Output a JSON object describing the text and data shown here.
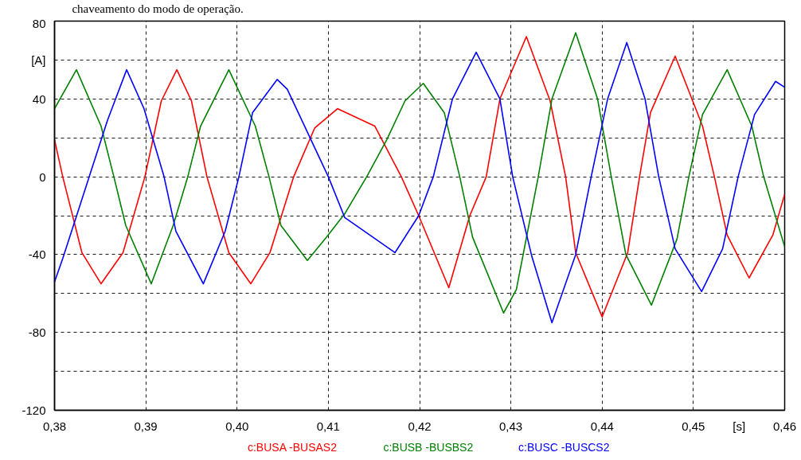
{
  "chart_data": {
    "type": "line",
    "annotations": [
      "chaveamento do modo de operação."
    ],
    "xlabel": "[s]",
    "xlim": [
      0.38,
      0.46
    ],
    "ylim": [
      -120,
      80
    ],
    "xticks": [
      {
        "value": 0.38,
        "label": "0,38"
      },
      {
        "value": 0.39,
        "label": "0,39"
      },
      {
        "value": 0.4,
        "label": "0,40"
      },
      {
        "value": 0.41,
        "label": "0,41"
      },
      {
        "value": 0.42,
        "label": "0,42"
      },
      {
        "value": 0.43,
        "label": "0,43"
      },
      {
        "value": 0.44,
        "label": "0,44"
      },
      {
        "value": 0.45,
        "label": "0,45"
      },
      {
        "value": 0.46,
        "label": "0,46"
      }
    ],
    "yticks": [
      -120,
      {
        "value": -100,
        "label": null
      },
      -80,
      {
        "value": -60,
        "label": null
      },
      -40,
      {
        "value": -20,
        "label": null
      },
      0,
      {
        "value": 20,
        "label": null
      },
      40,
      {
        "value": 60,
        "label": "[A]"
      },
      80
    ],
    "grid": true,
    "line_style": "solid",
    "marker": "none",
    "series": [
      {
        "name": "c:BUSA  -BUSAS2",
        "color": "#ff0000",
        "x": [
          0.38,
          0.3809,
          0.383,
          0.3851,
          0.3875,
          0.3899,
          0.3917,
          0.3934,
          0.395,
          0.3967,
          0.3991,
          0.4015,
          0.4036,
          0.4062,
          0.4085,
          0.411,
          0.4151,
          0.418,
          0.4199,
          0.4232,
          0.4255,
          0.4273,
          0.4288,
          0.4317,
          0.4343,
          0.436,
          0.4371,
          0.44,
          0.4428,
          0.4441,
          0.4453,
          0.448,
          0.451,
          0.4523,
          0.4537,
          0.4561,
          0.4587,
          0.46
        ],
        "values": [
          19,
          0,
          -39,
          -55,
          -39,
          0,
          39,
          55,
          39,
          0,
          -39,
          -55,
          -39,
          0,
          25,
          35,
          26,
          0,
          -20,
          -57,
          -20,
          0,
          40,
          72,
          39,
          0,
          -39,
          -72,
          -39,
          0,
          33,
          62,
          26,
          0,
          -30,
          -52,
          -30,
          -9
        ]
      },
      {
        "name": "c:BUSB  -BUSBS2",
        "color": "#008000",
        "x": [
          0.38,
          0.3824,
          0.3851,
          0.3865,
          0.3878,
          0.3906,
          0.393,
          0.3946,
          0.396,
          0.3991,
          0.402,
          0.4035,
          0.4048,
          0.4077,
          0.4098,
          0.4118,
          0.4142,
          0.4164,
          0.4184,
          0.4204,
          0.4227,
          0.4244,
          0.4258,
          0.4292,
          0.4306,
          0.433,
          0.4345,
          0.4371,
          0.4395,
          0.441,
          0.4426,
          0.4454,
          0.4482,
          0.4495,
          0.451,
          0.4537,
          0.4564,
          0.4577,
          0.46
        ],
        "values": [
          35,
          55,
          26,
          0,
          -25,
          -55,
          -25,
          0,
          26,
          55,
          26,
          0,
          -25,
          -43,
          -31,
          -19,
          0,
          19,
          39,
          48,
          33,
          0,
          -31,
          -70,
          -58,
          0,
          40,
          74,
          40,
          0,
          -40,
          -66,
          -32,
          0,
          32,
          55,
          26,
          0,
          -36
        ]
      },
      {
        "name": "c:BUSC  -BUSCS2",
        "color": "#0000ff",
        "x": [
          0.38,
          0.3809,
          0.3838,
          0.3858,
          0.3879,
          0.3898,
          0.392,
          0.3933,
          0.3963,
          0.3987,
          0.4002,
          0.4017,
          0.4044,
          0.4055,
          0.41,
          0.4118,
          0.4173,
          0.4199,
          0.4215,
          0.4236,
          0.4262,
          0.4288,
          0.4302,
          0.4323,
          0.4345,
          0.4371,
          0.4388,
          0.4406,
          0.4427,
          0.4447,
          0.4462,
          0.448,
          0.4509,
          0.4532,
          0.4549,
          0.4567,
          0.459,
          0.46
        ],
        "values": [
          -54,
          -42,
          0,
          29,
          55,
          35,
          0,
          -28,
          -55,
          -28,
          0,
          33,
          50,
          45,
          0,
          -21,
          -39,
          -20,
          0,
          40,
          64,
          40,
          0,
          -41,
          -75,
          -40,
          0,
          40,
          69,
          40,
          0,
          -37,
          -59,
          -37,
          0,
          32,
          49,
          46
        ]
      }
    ]
  }
}
